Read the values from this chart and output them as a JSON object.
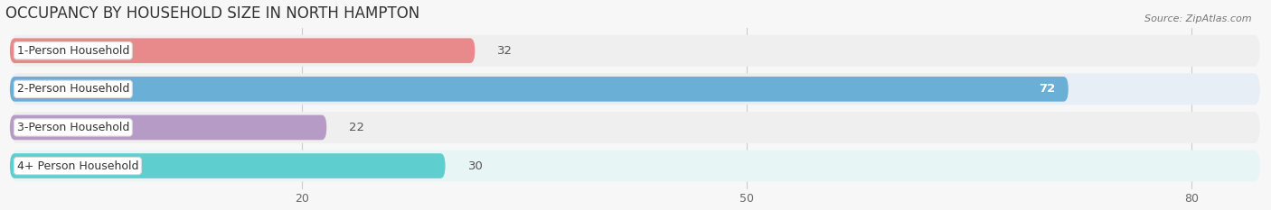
{
  "title": "OCCUPANCY BY HOUSEHOLD SIZE IN NORTH HAMPTON",
  "source": "Source: ZipAtlas.com",
  "categories": [
    "1-Person Household",
    "2-Person Household",
    "3-Person Household",
    "4+ Person Household"
  ],
  "values": [
    32,
    72,
    22,
    30
  ],
  "bar_colors": [
    "#e8898b",
    "#6aafd6",
    "#b59bc5",
    "#5ecece"
  ],
  "row_bg_colors": [
    "#efefef",
    "#e8eef5",
    "#efefef",
    "#e8f5f5"
  ],
  "xlim_max": 85,
  "xticks": [
    20,
    50,
    80
  ],
  "title_fontsize": 12,
  "bar_label_fontsize": 9.5,
  "cat_label_fontsize": 9,
  "axis_tick_fontsize": 9,
  "figsize": [
    14.06,
    2.33
  ],
  "dpi": 100
}
